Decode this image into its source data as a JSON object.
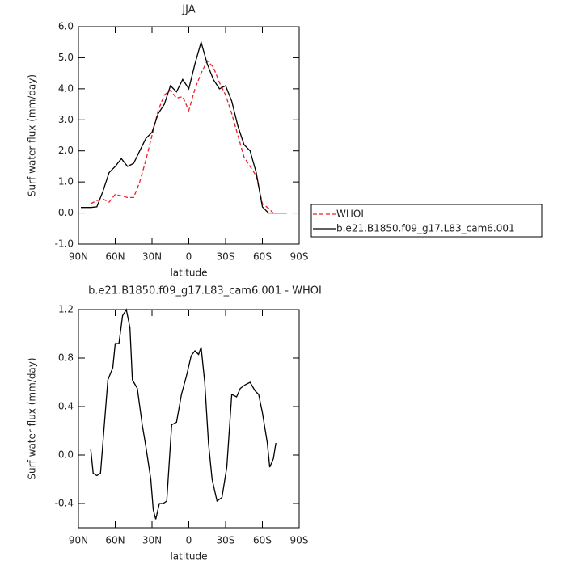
{
  "chart_data": [
    {
      "type": "line",
      "title": "JJA",
      "x_label": "latitude",
      "y_label": "Surf water flux (mm/day)",
      "x": [
        88,
        80,
        75,
        70,
        65,
        60,
        55,
        50,
        45,
        40,
        35,
        30,
        25,
        20,
        15,
        10,
        5,
        0,
        -5,
        -10,
        -15,
        -20,
        -25,
        -30,
        -35,
        -40,
        -45,
        -50,
        -55,
        -60,
        -65,
        -70,
        -80
      ],
      "series": [
        {
          "name": "WHOI",
          "color": "#e8202a",
          "dash": true,
          "values": [
            null,
            0.3,
            0.4,
            0.45,
            0.35,
            0.6,
            0.55,
            0.5,
            0.5,
            1.0,
            1.7,
            2.5,
            3.3,
            3.8,
            3.95,
            3.7,
            3.75,
            3.3,
            4.0,
            4.5,
            4.9,
            4.7,
            4.2,
            3.8,
            3.2,
            2.5,
            1.8,
            1.5,
            1.2,
            0.3,
            0.15,
            -0.05,
            null
          ]
        },
        {
          "name": "b.e21.B1850.f09_g17.L83_cam6.001",
          "color": "#000000",
          "dash": false,
          "values": [
            0.18,
            0.18,
            0.2,
            0.7,
            1.3,
            1.5,
            1.75,
            1.5,
            1.6,
            2.0,
            2.4,
            2.6,
            3.2,
            3.5,
            4.1,
            3.9,
            4.3,
            4.0,
            4.8,
            5.5,
            4.8,
            4.3,
            4.0,
            4.1,
            3.6,
            2.8,
            2.2,
            2.0,
            1.3,
            0.2,
            0.0,
            0.0,
            0.0
          ]
        }
      ],
      "xlim": [
        90,
        -90
      ],
      "xticks": [
        {
          "value": 90,
          "label": "90N"
        },
        {
          "value": 60,
          "label": "60N"
        },
        {
          "value": 30,
          "label": "30N"
        },
        0,
        {
          "value": -30,
          "label": "30S"
        },
        {
          "value": -60,
          "label": "60S"
        },
        {
          "value": -90,
          "label": "90S"
        }
      ],
      "ylim": [
        -1,
        6
      ],
      "yticks": [
        {
          "value": -1,
          "label": "-1.0"
        },
        {
          "value": 0,
          "label": "0.0"
        },
        {
          "value": 1,
          "label": "1.0"
        },
        {
          "value": 2,
          "label": "2.0"
        },
        {
          "value": 3,
          "label": "3.0"
        },
        {
          "value": 4,
          "label": "4.0"
        },
        {
          "value": 5,
          "label": "5.0"
        },
        {
          "value": 6,
          "label": "6.0"
        }
      ],
      "legend": "outside-right"
    },
    {
      "type": "line",
      "title": "b.e21.B1850.f09_g17.L83_cam6.001 - WHOI",
      "x_label": "latitude",
      "y_label": "Surf water flux (mm/day)",
      "x": [
        80,
        78,
        75,
        72,
        66,
        62,
        60,
        57,
        54,
        51,
        48,
        46,
        42,
        38,
        35,
        31,
        29,
        27,
        24,
        21,
        18,
        14,
        10,
        6,
        2,
        -2,
        -5,
        -8,
        -10,
        -13,
        -16,
        -19,
        -23,
        -27,
        -31,
        -35,
        -39,
        -42,
        -46,
        -50,
        -54,
        -57,
        -60,
        -64,
        -66,
        -69,
        -71
      ],
      "color": "#000000",
      "values": [
        0.05,
        -0.15,
        -0.17,
        -0.15,
        0.62,
        0.72,
        0.92,
        0.92,
        1.15,
        1.2,
        1.05,
        0.62,
        0.55,
        0.25,
        0.07,
        -0.2,
        -0.45,
        -0.53,
        -0.4,
        -0.4,
        -0.38,
        0.25,
        0.27,
        0.5,
        0.65,
        0.82,
        0.86,
        0.83,
        0.89,
        0.6,
        0.1,
        -0.2,
        -0.38,
        -0.35,
        -0.1,
        0.5,
        0.48,
        0.55,
        0.58,
        0.6,
        0.53,
        0.5,
        0.35,
        0.1,
        -0.1,
        -0.03,
        0.1
      ],
      "xlim": [
        90,
        -90
      ],
      "xticks": [
        {
          "value": 90,
          "label": "90N"
        },
        {
          "value": 60,
          "label": "60N"
        },
        {
          "value": 30,
          "label": "30N"
        },
        0,
        {
          "value": -30,
          "label": "30S"
        },
        {
          "value": -60,
          "label": "60S"
        },
        {
          "value": -90,
          "label": "90S"
        }
      ],
      "ylim": [
        -0.6,
        1.2
      ],
      "yticks": [
        -0.4,
        {
          "value": 0,
          "label": "0.0"
        },
        0.4,
        0.8,
        1.2
      ]
    }
  ]
}
